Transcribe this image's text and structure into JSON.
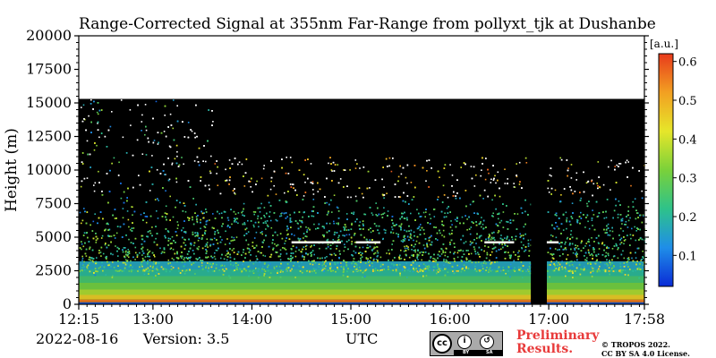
{
  "chart_data": {
    "type": "heatmap",
    "title": "Range-Corrected Signal at 355nm Far-Range from pollyxt_tjk at Dushanbe",
    "ylabel": "Height (m)",
    "xlabel": "UTC",
    "ylim": [
      0,
      20000
    ],
    "yticks": [
      0,
      2500,
      5000,
      7500,
      10000,
      12500,
      15000,
      17500,
      20000
    ],
    "ytick_labels": [
      "0",
      "2500",
      "5000",
      "7500",
      "10000",
      "12500",
      "15000",
      "17500",
      "20000"
    ],
    "xlim_hours": [
      12.25,
      17.9667
    ],
    "xticks_hours": [
      12.25,
      13.0,
      14.0,
      15.0,
      16.0,
      17.0,
      17.9667
    ],
    "xtick_labels": [
      "12:15",
      "13:00",
      "14:00",
      "15:00",
      "16:00",
      "17:00",
      "17:58"
    ],
    "data_top_height": 15300,
    "gap_hours": [
      16.82,
      16.98
    ],
    "colorbar": {
      "label": "[a.u.]",
      "range": [
        0.02,
        0.62
      ],
      "ticks": [
        0.1,
        0.2,
        0.3,
        0.4,
        0.5,
        0.6
      ],
      "tick_labels": [
        "0.1",
        "0.2",
        "0.3",
        "0.4",
        "0.5",
        "0.6"
      ],
      "colors": [
        "#0a2bd6",
        "#1f8ee8",
        "#2ec28a",
        "#7ad13a",
        "#e6e62a",
        "#f2a022",
        "#e83a1c"
      ]
    }
  },
  "footer": {
    "date": "2022-08-16",
    "version": "Version: 3.5",
    "utc": "UTC",
    "license_badge": {
      "cc": "cc",
      "by": "BY",
      "sa": "SA"
    },
    "preliminary_line1": "Preliminary",
    "preliminary_line2": "Results.",
    "copyright_line1": "© TROPOS 2022.",
    "copyright_line2": "CC BY SA 4.0 License."
  },
  "colors": {
    "preliminary": "#e83a3a",
    "background_no_signal": "#000000"
  }
}
